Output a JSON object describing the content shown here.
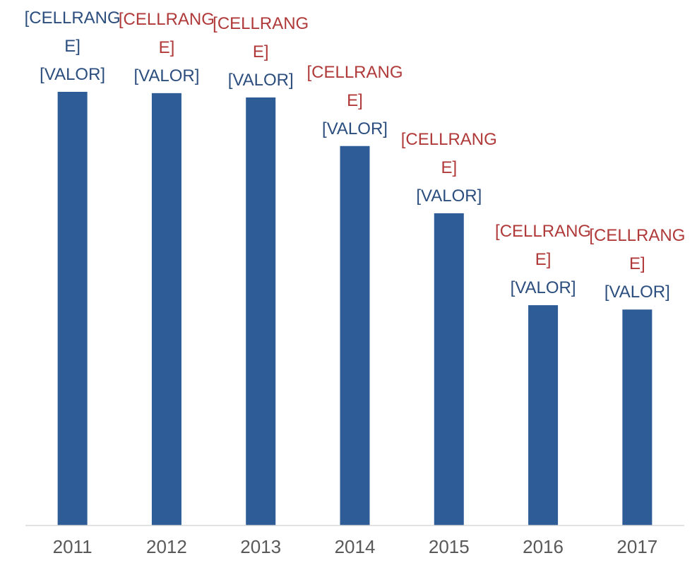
{
  "chart_data": {
    "type": "bar",
    "categories": [
      "2011",
      "2012",
      "2013",
      "2014",
      "2015",
      "2016",
      "2017"
    ],
    "values": [
      100,
      99.7,
      98.7,
      87.5,
      72,
      50.8,
      49.8
    ],
    "value_labels": [
      "[VALOR]",
      "[VALOR]",
      "[VALOR]",
      "[VALOR]",
      "[VALOR]",
      "[VALOR]",
      "[VALOR]"
    ],
    "range_labels": [
      "[CELLRANGE]",
      "[CELLRANGE]",
      "[CELLRANGE]",
      "[CELLRANGE]",
      "[CELLRANGE]",
      "[CELLRANGE]",
      "[CELLRANGE]"
    ],
    "range_label_colors": [
      "#2b4e7e",
      "#b03a3a",
      "#b03a3a",
      "#b03a3a",
      "#b03a3a",
      "#b03a3a",
      "#b03a3a"
    ],
    "value_label_color": "#2b4e7e",
    "color": "#2e5c96",
    "ylim": [
      0,
      100
    ]
  }
}
